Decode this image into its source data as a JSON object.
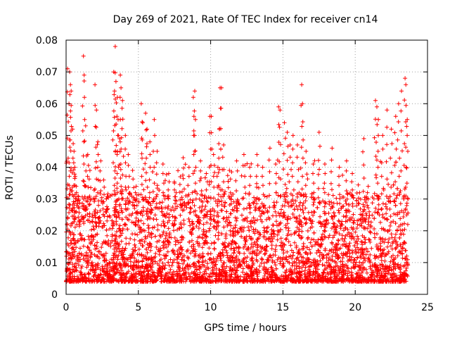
{
  "chart_data": {
    "type": "scatter",
    "title": "Day 269 of 2021, Rate Of TEC Index for receiver cn14",
    "xlabel": "GPS time / hours",
    "ylabel": "ROTI / TECUs",
    "xlim": [
      0,
      25
    ],
    "ylim": [
      0,
      0.08
    ],
    "xticks": [
      0,
      5,
      10,
      15,
      20,
      25
    ],
    "yticks": [
      0,
      0.01,
      0.02,
      0.03,
      0.04,
      0.05,
      0.06,
      0.07,
      0.08
    ],
    "xtick_labels": [
      "0",
      "5",
      "10",
      "15",
      "20",
      "25"
    ],
    "ytick_labels": [
      "0",
      "0.01",
      "0.02",
      "0.03",
      "0.04",
      "0.05",
      "0.06",
      "0.07",
      "0.08"
    ],
    "grid": true,
    "marker": "+",
    "marker_color": "#ff0000",
    "series": [
      {
        "name": "cn14",
        "points": [
          [
            0.1,
            0.071
          ],
          [
            0.25,
            0.07
          ],
          [
            0.3,
            0.066
          ],
          [
            0.35,
            0.064
          ],
          [
            0.2,
            0.06
          ],
          [
            0.45,
            0.052
          ],
          [
            0.55,
            0.045
          ],
          [
            0.6,
            0.04
          ],
          [
            0.7,
            0.034
          ],
          [
            0.85,
            0.03
          ],
          [
            1.2,
            0.075
          ],
          [
            1.25,
            0.069
          ],
          [
            1.35,
            0.053
          ],
          [
            1.5,
            0.044
          ],
          [
            1.65,
            0.039
          ],
          [
            2.0,
            0.066
          ],
          [
            2.1,
            0.058
          ],
          [
            2.2,
            0.048
          ],
          [
            2.4,
            0.042
          ],
          [
            2.6,
            0.036
          ],
          [
            3.4,
            0.078
          ],
          [
            3.3,
            0.07
          ],
          [
            3.45,
            0.067
          ],
          [
            3.35,
            0.064
          ],
          [
            3.55,
            0.062
          ],
          [
            3.75,
            0.069
          ],
          [
            3.8,
            0.065
          ],
          [
            3.9,
            0.061
          ],
          [
            3.6,
            0.055
          ],
          [
            3.7,
            0.049
          ],
          [
            4.1,
            0.05
          ],
          [
            4.3,
            0.044
          ],
          [
            4.6,
            0.039
          ],
          [
            4.85,
            0.034
          ],
          [
            5.2,
            0.06
          ],
          [
            5.3,
            0.054
          ],
          [
            5.5,
            0.057
          ],
          [
            5.6,
            0.052
          ],
          [
            5.8,
            0.048
          ],
          [
            6.1,
            0.055
          ],
          [
            6.3,
            0.045
          ],
          [
            6.7,
            0.041
          ],
          [
            7.1,
            0.038
          ],
          [
            7.5,
            0.035
          ],
          [
            7.9,
            0.037
          ],
          [
            8.1,
            0.043
          ],
          [
            8.5,
            0.04
          ],
          [
            8.9,
            0.064
          ],
          [
            8.8,
            0.062
          ],
          [
            8.95,
            0.055
          ],
          [
            9.3,
            0.042
          ],
          [
            9.7,
            0.038
          ],
          [
            9.95,
            0.056
          ],
          [
            10.05,
            0.056
          ],
          [
            10.2,
            0.044
          ],
          [
            10.5,
            0.04
          ],
          [
            10.65,
            0.065
          ],
          [
            10.75,
            0.065
          ],
          [
            10.6,
            0.052
          ],
          [
            10.9,
            0.047
          ],
          [
            11.3,
            0.039
          ],
          [
            11.8,
            0.042
          ],
          [
            12.3,
            0.044
          ],
          [
            12.7,
            0.04
          ],
          [
            13.2,
            0.044
          ],
          [
            13.6,
            0.04
          ],
          [
            14.1,
            0.046
          ],
          [
            14.5,
            0.041
          ],
          [
            14.7,
            0.059
          ],
          [
            14.8,
            0.058
          ],
          [
            15.1,
            0.054
          ],
          [
            15.3,
            0.051
          ],
          [
            15.5,
            0.047
          ],
          [
            15.7,
            0.05
          ],
          [
            16.0,
            0.047
          ],
          [
            16.3,
            0.066
          ],
          [
            16.35,
            0.06
          ],
          [
            16.6,
            0.045
          ],
          [
            17.1,
            0.041
          ],
          [
            17.5,
            0.051
          ],
          [
            17.9,
            0.041
          ],
          [
            18.4,
            0.046
          ],
          [
            18.9,
            0.04
          ],
          [
            19.4,
            0.042
          ],
          [
            19.8,
            0.038
          ],
          [
            20.3,
            0.032
          ],
          [
            20.6,
            0.049
          ],
          [
            20.9,
            0.034
          ],
          [
            21.4,
            0.061
          ],
          [
            21.5,
            0.059
          ],
          [
            21.6,
            0.055
          ],
          [
            21.9,
            0.05
          ],
          [
            22.2,
            0.058
          ],
          [
            22.5,
            0.052
          ],
          [
            22.8,
            0.056
          ],
          [
            23.0,
            0.06
          ],
          [
            23.2,
            0.064
          ],
          [
            23.45,
            0.068
          ],
          [
            23.5,
            0.066
          ],
          [
            23.6,
            0.055
          ]
        ]
      }
    ]
  }
}
